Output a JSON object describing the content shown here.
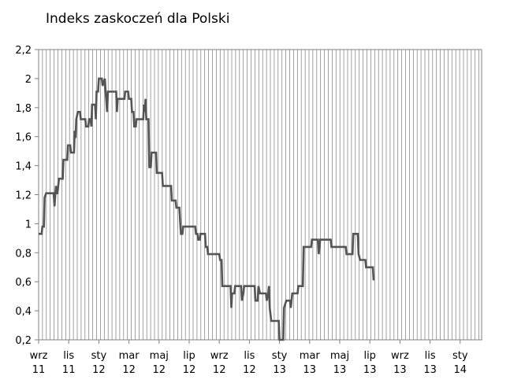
{
  "chart_data": {
    "type": "line",
    "title": "Indeks zaskoczeń dla Polski",
    "xlabel": "",
    "ylabel": "",
    "ylim": [
      0.2,
      2.2
    ],
    "y_ticks": [
      "2,2",
      "2",
      "1,8",
      "1,6",
      "1,4",
      "1,2",
      "1",
      "0,8",
      "0,6",
      "0,4",
      "0,2"
    ],
    "x_labels": [
      {
        "month": "wrz",
        "year": "11"
      },
      {
        "month": "lis",
        "year": "11"
      },
      {
        "month": "sty",
        "year": "12"
      },
      {
        "month": "mar",
        "year": "12"
      },
      {
        "month": "maj",
        "year": "12"
      },
      {
        "month": "lip",
        "year": "12"
      },
      {
        "month": "wrz",
        "year": "12"
      },
      {
        "month": "lis",
        "year": "12"
      },
      {
        "month": "sty",
        "year": "13"
      },
      {
        "month": "mar",
        "year": "13"
      },
      {
        "month": "maj",
        "year": "13"
      },
      {
        "month": "lip",
        "year": "13"
      },
      {
        "month": "wrz",
        "year": "13"
      },
      {
        "month": "lis",
        "year": "13"
      },
      {
        "month": "sty",
        "year": "14"
      }
    ],
    "x_range_months": [
      0,
      29.4
    ],
    "grid": "vertical lines every few days",
    "line_color": "#555555",
    "series": [
      {
        "values": [
          [
            0.0,
            0.93
          ],
          [
            0.2,
            0.93
          ],
          [
            0.25,
            0.98
          ],
          [
            0.35,
            0.98
          ],
          [
            0.4,
            1.18
          ],
          [
            0.5,
            1.21
          ],
          [
            1.0,
            1.21
          ],
          [
            1.05,
            1.12
          ],
          [
            1.15,
            1.26
          ],
          [
            1.2,
            1.21
          ],
          [
            1.25,
            1.21
          ],
          [
            1.35,
            1.31
          ],
          [
            1.6,
            1.31
          ],
          [
            1.65,
            1.44
          ],
          [
            1.9,
            1.44
          ],
          [
            1.95,
            1.54
          ],
          [
            2.1,
            1.54
          ],
          [
            2.15,
            1.49
          ],
          [
            2.35,
            1.49
          ],
          [
            2.4,
            1.64
          ],
          [
            2.45,
            1.59
          ],
          [
            2.5,
            1.72
          ],
          [
            2.6,
            1.77
          ],
          [
            2.75,
            1.77
          ],
          [
            2.8,
            1.72
          ],
          [
            3.1,
            1.72
          ],
          [
            3.15,
            1.67
          ],
          [
            3.3,
            1.67
          ],
          [
            3.35,
            1.72
          ],
          [
            3.45,
            1.72
          ],
          [
            3.5,
            1.67
          ],
          [
            3.55,
            1.82
          ],
          [
            3.75,
            1.82
          ],
          [
            3.8,
            1.72
          ],
          [
            3.85,
            1.91
          ],
          [
            3.95,
            1.91
          ],
          [
            4.0,
            2.0
          ],
          [
            4.2,
            2.0
          ],
          [
            4.25,
            1.95
          ],
          [
            4.4,
            2.0
          ],
          [
            4.45,
            1.91
          ],
          [
            4.55,
            1.77
          ],
          [
            4.6,
            1.91
          ],
          [
            5.15,
            1.91
          ],
          [
            5.2,
            1.77
          ],
          [
            5.25,
            1.86
          ],
          [
            5.7,
            1.86
          ],
          [
            5.75,
            1.91
          ],
          [
            5.95,
            1.91
          ],
          [
            6.0,
            1.86
          ],
          [
            6.15,
            1.86
          ],
          [
            6.2,
            1.77
          ],
          [
            6.3,
            1.77
          ],
          [
            6.35,
            1.67
          ],
          [
            6.45,
            1.67
          ],
          [
            6.5,
            1.72
          ],
          [
            6.95,
            1.72
          ],
          [
            7.0,
            1.82
          ],
          [
            7.05,
            1.77
          ],
          [
            7.1,
            1.86
          ],
          [
            7.15,
            1.72
          ],
          [
            7.3,
            1.72
          ],
          [
            7.35,
            1.39
          ],
          [
            7.45,
            1.39
          ],
          [
            7.5,
            1.49
          ],
          [
            7.8,
            1.49
          ],
          [
            7.85,
            1.35
          ],
          [
            8.2,
            1.35
          ],
          [
            8.25,
            1.26
          ],
          [
            8.8,
            1.26
          ],
          [
            8.85,
            1.16
          ],
          [
            9.1,
            1.16
          ],
          [
            9.15,
            1.11
          ],
          [
            9.35,
            1.11
          ],
          [
            9.4,
            1.02
          ],
          [
            9.45,
            0.93
          ],
          [
            9.55,
            0.93
          ],
          [
            9.6,
            0.98
          ],
          [
            10.4,
            0.98
          ],
          [
            10.45,
            0.93
          ],
          [
            10.55,
            0.93
          ],
          [
            10.6,
            0.89
          ],
          [
            10.7,
            0.89
          ],
          [
            10.75,
            0.93
          ],
          [
            11.05,
            0.93
          ],
          [
            11.1,
            0.84
          ],
          [
            11.2,
            0.84
          ],
          [
            11.25,
            0.79
          ],
          [
            12.0,
            0.79
          ],
          [
            12.05,
            0.75
          ],
          [
            12.15,
            0.75
          ],
          [
            12.2,
            0.57
          ],
          [
            12.75,
            0.57
          ],
          [
            12.8,
            0.42
          ],
          [
            12.85,
            0.52
          ],
          [
            13.0,
            0.52
          ],
          [
            13.05,
            0.57
          ],
          [
            13.45,
            0.57
          ],
          [
            13.5,
            0.47
          ],
          [
            13.6,
            0.52
          ],
          [
            13.65,
            0.57
          ],
          [
            14.35,
            0.57
          ],
          [
            14.4,
            0.47
          ],
          [
            14.55,
            0.47
          ],
          [
            14.6,
            0.57
          ],
          [
            14.7,
            0.52
          ],
          [
            15.1,
            0.52
          ],
          [
            15.15,
            0.47
          ],
          [
            15.25,
            0.52
          ],
          [
            15.3,
            0.57
          ],
          [
            15.35,
            0.42
          ],
          [
            15.45,
            0.33
          ],
          [
            15.95,
            0.33
          ],
          [
            16.0,
            0.2
          ],
          [
            16.25,
            0.2
          ],
          [
            16.3,
            0.42
          ],
          [
            16.45,
            0.47
          ],
          [
            16.7,
            0.47
          ],
          [
            16.75,
            0.42
          ],
          [
            16.85,
            0.52
          ],
          [
            17.2,
            0.52
          ],
          [
            17.25,
            0.57
          ],
          [
            17.55,
            0.57
          ],
          [
            17.6,
            0.84
          ],
          [
            18.1,
            0.84
          ],
          [
            18.15,
            0.89
          ],
          [
            18.55,
            0.89
          ],
          [
            18.6,
            0.79
          ],
          [
            18.7,
            0.89
          ],
          [
            19.4,
            0.89
          ],
          [
            19.45,
            0.84
          ],
          [
            20.4,
            0.84
          ],
          [
            20.45,
            0.79
          ],
          [
            20.85,
            0.79
          ],
          [
            20.9,
            0.93
          ],
          [
            21.2,
            0.93
          ],
          [
            21.25,
            0.79
          ],
          [
            21.35,
            0.75
          ],
          [
            21.7,
            0.75
          ],
          [
            21.75,
            0.7
          ],
          [
            22.2,
            0.7
          ],
          [
            22.25,
            0.61
          ]
        ]
      }
    ]
  }
}
